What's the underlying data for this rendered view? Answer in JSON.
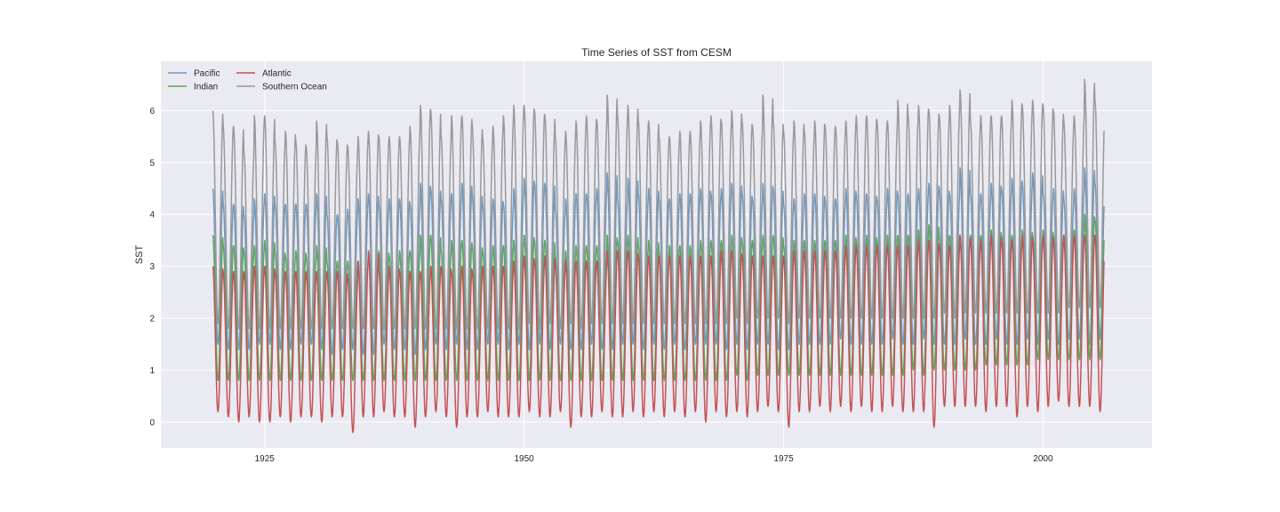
{
  "chart_data": {
    "type": "line",
    "title": "Time Series of SST from CESM",
    "xlabel": "",
    "ylabel": "SST",
    "xlim": [
      1915.0,
      2010.5
    ],
    "ylim": [
      -0.5,
      6.95
    ],
    "x_start": 1920.0,
    "x_end": 2005.9,
    "x_ticks": [
      1925,
      1950,
      1975,
      2000
    ],
    "y_ticks": [
      0,
      1,
      2,
      3,
      4,
      5,
      6
    ],
    "grid": true,
    "legend_position": "top-left",
    "series": [
      {
        "name": "Pacific",
        "color": "#7298bf",
        "annual_peaks": [
          4.5,
          4.2,
          4.2,
          4.0,
          4.3,
          4.4,
          4.2,
          4.2,
          4.2,
          4.2,
          4.4,
          4.0,
          4.0,
          4.1,
          4.3,
          4.4,
          4.2,
          4.3,
          4.3,
          4.2,
          4.6,
          4.5,
          4.3,
          4.4,
          4.6,
          4.4,
          4.2,
          4.3,
          4.2,
          4.5,
          4.7,
          4.6,
          4.6,
          4.1,
          4.3,
          4.4,
          4.4,
          4.5,
          4.8,
          4.3,
          4.7,
          4.4,
          4.5,
          4.3,
          4.3,
          4.4,
          4.4,
          4.5,
          4.4,
          4.5,
          4.6,
          4.4,
          4.3,
          4.6,
          4.5,
          4.2,
          4.3,
          4.4,
          4.4,
          4.3,
          4.3,
          4.5,
          4.4,
          4.4,
          4.3,
          4.5,
          4.4,
          4.4,
          4.5,
          4.6,
          4.5,
          4.4,
          4.9,
          4.4,
          4.4,
          4.6,
          4.5,
          4.7,
          4.6,
          4.8,
          4.4,
          4.5,
          4.3,
          4.5,
          4.9,
          4.6
        ],
        "annual_troughs": [
          1.5,
          1.4,
          1.4,
          1.4,
          1.5,
          1.5,
          1.4,
          1.4,
          1.5,
          1.5,
          1.4,
          1.3,
          1.4,
          1.4,
          1.3,
          1.3,
          1.5,
          1.4,
          1.4,
          1.3,
          1.4,
          1.5,
          1.4,
          1.5,
          1.4,
          1.4,
          1.5,
          1.5,
          1.4,
          1.5,
          1.4,
          1.5,
          1.4,
          1.5,
          1.4,
          1.4,
          1.5,
          1.4,
          1.4,
          1.5,
          1.5,
          1.4,
          1.5,
          1.4,
          1.5,
          1.4,
          1.5,
          1.5,
          1.5,
          1.4,
          1.5,
          1.4,
          1.5,
          1.5,
          1.4,
          1.4,
          1.5,
          1.5,
          1.5,
          1.5,
          1.6,
          1.5,
          1.5,
          1.5,
          1.5,
          1.6,
          1.5,
          1.5,
          1.6,
          1.5,
          1.5,
          1.5,
          1.6,
          1.5,
          1.5,
          1.6,
          1.5,
          1.5,
          1.6,
          1.5,
          1.6,
          1.5,
          1.6,
          1.6,
          1.5,
          1.6
        ]
      },
      {
        "name": "Indian",
        "color": "#5fa65a",
        "annual_peaks": [
          3.6,
          3.4,
          3.4,
          3.3,
          3.4,
          3.5,
          3.3,
          3.2,
          3.3,
          3.2,
          3.4,
          3.1,
          3.1,
          3.1,
          3.1,
          3.2,
          3.3,
          3.2,
          3.3,
          3.3,
          3.6,
          3.6,
          3.3,
          3.5,
          3.5,
          3.4,
          3.3,
          3.4,
          3.4,
          3.5,
          3.6,
          3.5,
          3.5,
          3.2,
          3.3,
          3.4,
          3.4,
          3.4,
          3.6,
          3.5,
          3.6,
          3.4,
          3.5,
          3.3,
          3.4,
          3.4,
          3.4,
          3.5,
          3.5,
          3.5,
          3.6,
          3.5,
          3.5,
          3.6,
          3.6,
          3.4,
          3.5,
          3.5,
          3.5,
          3.5,
          3.5,
          3.6,
          3.5,
          3.6,
          3.5,
          3.6,
          3.6,
          3.6,
          3.7,
          3.8,
          3.6,
          3.6,
          3.6,
          3.6,
          3.6,
          3.7,
          3.6,
          3.6,
          3.7,
          3.6,
          3.7,
          3.6,
          3.6,
          3.7,
          4.0,
          3.9
        ],
        "annual_troughs": [
          0.8,
          0.8,
          0.8,
          0.8,
          0.8,
          0.8,
          0.8,
          0.8,
          0.8,
          0.8,
          0.8,
          0.8,
          0.8,
          0.8,
          0.8,
          0.8,
          0.8,
          0.8,
          0.8,
          0.8,
          0.8,
          0.8,
          0.8,
          0.8,
          0.8,
          0.8,
          0.8,
          0.8,
          0.8,
          0.8,
          0.8,
          0.8,
          0.8,
          0.8,
          0.8,
          0.8,
          0.8,
          0.8,
          0.8,
          0.8,
          0.8,
          0.8,
          0.8,
          0.8,
          0.8,
          0.8,
          0.8,
          0.8,
          0.8,
          0.8,
          0.9,
          0.8,
          0.9,
          0.9,
          0.9,
          0.9,
          0.9,
          0.9,
          0.9,
          0.9,
          0.9,
          0.9,
          0.9,
          0.9,
          0.9,
          0.9,
          0.9,
          1.0,
          0.9,
          1.0,
          1.0,
          1.0,
          1.0,
          1.0,
          1.1,
          1.1,
          1.1,
          1.1,
          1.1,
          1.2,
          1.2,
          1.2,
          1.2,
          1.2,
          1.2,
          1.2
        ]
      },
      {
        "name": "Atlantic",
        "color": "#c45355",
        "annual_peaks": [
          3.0,
          2.9,
          2.9,
          2.9,
          3.0,
          3.0,
          2.9,
          2.9,
          2.9,
          2.9,
          2.9,
          2.9,
          2.9,
          2.8,
          3.1,
          3.3,
          2.9,
          3.0,
          2.9,
          2.9,
          2.9,
          3.0,
          3.0,
          2.9,
          3.0,
          2.9,
          3.0,
          3.0,
          3.0,
          3.1,
          3.2,
          3.1,
          3.2,
          3.0,
          3.1,
          3.1,
          3.1,
          3.1,
          3.3,
          3.3,
          3.3,
          3.2,
          3.2,
          3.2,
          3.2,
          3.2,
          3.2,
          3.2,
          3.2,
          3.3,
          3.3,
          3.2,
          3.2,
          3.2,
          3.2,
          3.2,
          3.3,
          3.3,
          3.3,
          3.3,
          3.3,
          3.4,
          3.4,
          3.4,
          3.4,
          3.4,
          3.4,
          3.4,
          3.5,
          3.5,
          3.4,
          3.4,
          3.6,
          3.5,
          3.5,
          3.6,
          3.5,
          3.5,
          3.6,
          3.5,
          3.6,
          3.5,
          3.6,
          3.6,
          3.6,
          3.6
        ],
        "annual_troughs": [
          0.2,
          0.1,
          0.0,
          0.1,
          0.0,
          0.0,
          0.1,
          0.0,
          0.1,
          0.1,
          0.0,
          0.1,
          0.1,
          -0.2,
          0.1,
          0.1,
          0.2,
          0.1,
          0.1,
          -0.1,
          0.1,
          0.2,
          0.1,
          -0.1,
          0.1,
          0.1,
          0.2,
          0.1,
          0.1,
          0.1,
          0.2,
          0.1,
          0.1,
          0.2,
          -0.1,
          0.1,
          0.1,
          0.2,
          0.1,
          0.1,
          0.2,
          0.1,
          0.2,
          0.1,
          0.2,
          0.1,
          0.2,
          0.0,
          0.2,
          0.1,
          0.2,
          0.1,
          0.2,
          0.3,
          0.2,
          -0.1,
          0.2,
          0.2,
          0.3,
          0.2,
          0.3,
          0.2,
          0.3,
          0.2,
          0.2,
          0.3,
          0.2,
          0.2,
          0.2,
          -0.1,
          0.3,
          0.3,
          0.3,
          0.3,
          0.2,
          0.3,
          0.3,
          0.1,
          0.3,
          0.2,
          0.3,
          0.4,
          0.3,
          0.3,
          0.3,
          0.2
        ]
      },
      {
        "name": "Southern Ocean",
        "color": "#999999",
        "annual_peaks": [
          6.0,
          5.7,
          5.7,
          5.2,
          5.9,
          5.9,
          5.4,
          5.6,
          5.4,
          5.3,
          5.8,
          5.5,
          5.4,
          5.3,
          5.5,
          5.6,
          5.5,
          5.5,
          5.5,
          5.7,
          6.1,
          6.0,
          5.5,
          5.9,
          5.9,
          5.7,
          5.5,
          5.7,
          5.9,
          6.1,
          6.1,
          6.0,
          5.9,
          5.5,
          5.6,
          5.8,
          5.9,
          5.8,
          6.3,
          5.9,
          6.1,
          5.8,
          5.8,
          5.5,
          5.5,
          5.6,
          5.6,
          5.8,
          5.9,
          5.8,
          6.0,
          5.8,
          5.7,
          6.3,
          5.8,
          5.6,
          5.8,
          5.6,
          5.8,
          5.7,
          5.7,
          5.8,
          5.9,
          5.9,
          5.8,
          5.8,
          6.2,
          5.9,
          6.1,
          6.0,
          5.9,
          6.1,
          6.4,
          5.8,
          5.9,
          5.9,
          5.9,
          6.2,
          6.1,
          6.2,
          6.1,
          6.0,
          5.8,
          5.9,
          6.6,
          6.2
        ],
        "annual_troughs": [
          1.9,
          1.8,
          1.8,
          1.8,
          1.8,
          1.8,
          1.8,
          1.8,
          1.8,
          1.8,
          1.8,
          1.8,
          1.8,
          1.8,
          1.8,
          1.8,
          1.8,
          1.8,
          1.8,
          1.8,
          1.8,
          1.8,
          1.8,
          1.8,
          1.8,
          1.8,
          1.8,
          1.8,
          1.8,
          1.8,
          1.9,
          1.8,
          1.9,
          1.8,
          1.9,
          1.8,
          1.9,
          1.9,
          1.9,
          1.9,
          1.9,
          1.9,
          1.9,
          1.9,
          1.9,
          1.9,
          1.9,
          1.9,
          1.9,
          1.9,
          2.0,
          1.9,
          2.0,
          2.0,
          2.0,
          1.9,
          2.0,
          2.0,
          2.0,
          2.0,
          2.0,
          2.0,
          2.0,
          2.0,
          2.0,
          2.0,
          2.0,
          2.0,
          2.0,
          2.0,
          2.1,
          2.0,
          2.1,
          2.1,
          2.1,
          2.1,
          2.1,
          2.1,
          2.1,
          2.1,
          2.1,
          2.1,
          2.2,
          2.2,
          2.2,
          2.2
        ]
      }
    ]
  },
  "colors": {
    "plot_background": "#eaeaf2",
    "grid": "#ffffff",
    "text": "#262626"
  }
}
